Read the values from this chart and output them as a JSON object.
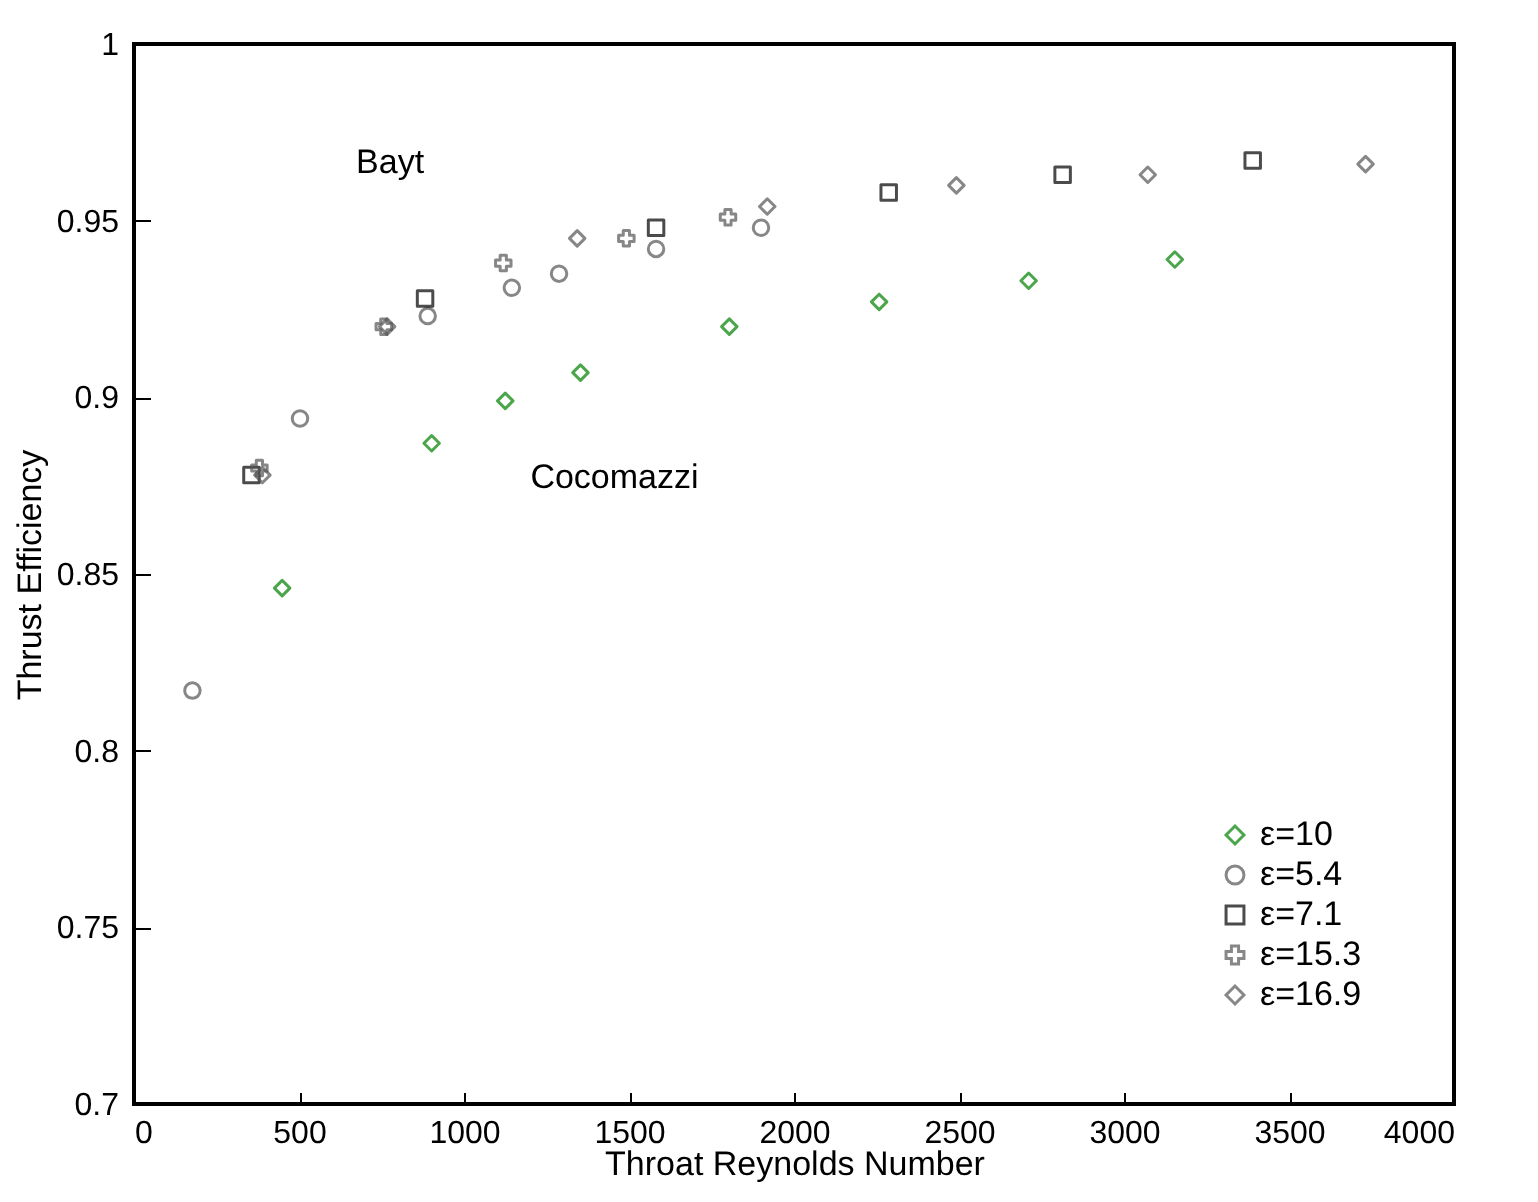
{
  "chart_data": {
    "type": "scatter",
    "xlabel": "Throat Reynolds Number",
    "ylabel": "Thrust Efficiency",
    "xlim": [
      0,
      4000
    ],
    "xticks": [
      0,
      500,
      1000,
      1500,
      2000,
      2500,
      3000,
      3500,
      4000
    ],
    "ylim": [
      0.7,
      1
    ],
    "yticks": [
      0.7,
      0.75,
      0.8,
      0.85,
      0.9,
      0.95,
      1
    ],
    "grid": false,
    "legend": "bottom right",
    "annotations": [
      "Bayt",
      "Cocomazzi"
    ],
    "series": [
      {
        "name": "ε=10",
        "color": "#008000",
        "marker": "diamond",
        "x": [
          449,
          902,
          1125,
          1353,
          1804,
          2258,
          2711,
          3154
        ],
        "values": [
          0.846,
          0.887,
          0.899,
          0.907,
          0.92,
          0.927,
          0.933,
          0.939
        ]
      },
      {
        "name": "ε=5.4",
        "color": "#555555",
        "marker": "circle",
        "x": [
          177,
          503,
          890,
          1145,
          1288,
          1582,
          1900
        ],
        "values": [
          0.817,
          0.894,
          0.923,
          0.931,
          0.935,
          0.942,
          0.948
        ]
      },
      {
        "name": "ε=7.1",
        "color": "#000000",
        "marker": "square",
        "x": [
          356,
          882,
          1582,
          2287,
          2814,
          3390
        ],
        "values": [
          0.878,
          0.928,
          0.948,
          0.958,
          0.963,
          0.967
        ]
      },
      {
        "name": "ε=15.3",
        "color": "#555555",
        "marker": "cross",
        "x": [
          380,
          757,
          1119,
          1492,
          1800
        ],
        "values": [
          0.88,
          0.92,
          0.938,
          0.945,
          0.951
        ]
      },
      {
        "name": "ε=16.9",
        "color": "#555555",
        "marker": "diamond",
        "x": [
          389,
          767,
          1343,
          1919,
          2492,
          3072,
          3732
        ],
        "values": [
          0.878,
          0.92,
          0.945,
          0.954,
          0.96,
          0.963,
          0.966
        ]
      }
    ]
  }
}
